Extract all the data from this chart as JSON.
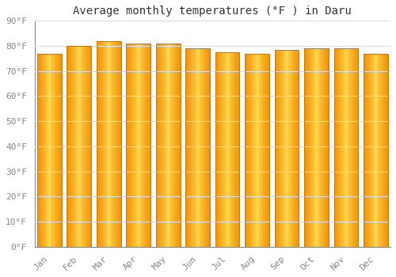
{
  "title": "Average monthly temperatures (°F ) in Daru",
  "months": [
    "Jan",
    "Feb",
    "Mar",
    "Apr",
    "May",
    "Jun",
    "Jul",
    "Aug",
    "Sep",
    "Oct",
    "Nov",
    "Dec"
  ],
  "values": [
    77,
    80,
    82,
    81,
    81,
    79,
    77.5,
    77,
    78.5,
    79,
    79,
    77
  ],
  "ylim": [
    0,
    90
  ],
  "ytick_step": 10,
  "background_color": "#FFFFFF",
  "grid_color": "#DDDDDD",
  "title_fontsize": 10,
  "tick_fontsize": 8,
  "bar_color_center": "#FFD060",
  "bar_color_edge": "#F0920A",
  "bar_outline_color": "#C97800",
  "bar_width": 0.82
}
